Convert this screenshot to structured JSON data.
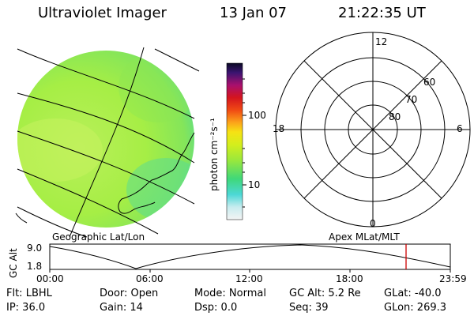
{
  "header": {
    "instrument": "Ultraviolet Imager",
    "date": "13 Jan 07",
    "time": "21:22:35 UT"
  },
  "colorbar": {
    "unit_label": "photon cm⁻²s⁻¹",
    "tick_100": "100",
    "tick_10": "10"
  },
  "polar": {
    "mlt_12": "12",
    "mlt_18": "18",
    "mlt_6": "6",
    "mlt_0": "0",
    "lat_60": "60",
    "lat_70": "70",
    "lat_80": "80"
  },
  "captions": {
    "left": "Geographic Lat/Lon",
    "right": "Apex MLat/MLT"
  },
  "altitude_plot": {
    "y_label": "GC Alt",
    "y_top": "9.0",
    "y_bottom": "1.8",
    "x_ticks": [
      "00:00",
      "06:00",
      "12:00",
      "18:00",
      "23:59"
    ],
    "current_time_marker_color": "#cc0000"
  },
  "status": {
    "flt": "Flt: LBHL",
    "door": "Door: Open",
    "mode": "Mode: Normal",
    "gc_alt": "GC Alt: 5.2 Re",
    "glat": "GLat: -40.0",
    "ip": "IP: 36.0",
    "gain": "Gain: 14",
    "dsp": "Dsp:      0.0",
    "seq": "Seq: 39",
    "glon": "GLon: 269.3"
  }
}
